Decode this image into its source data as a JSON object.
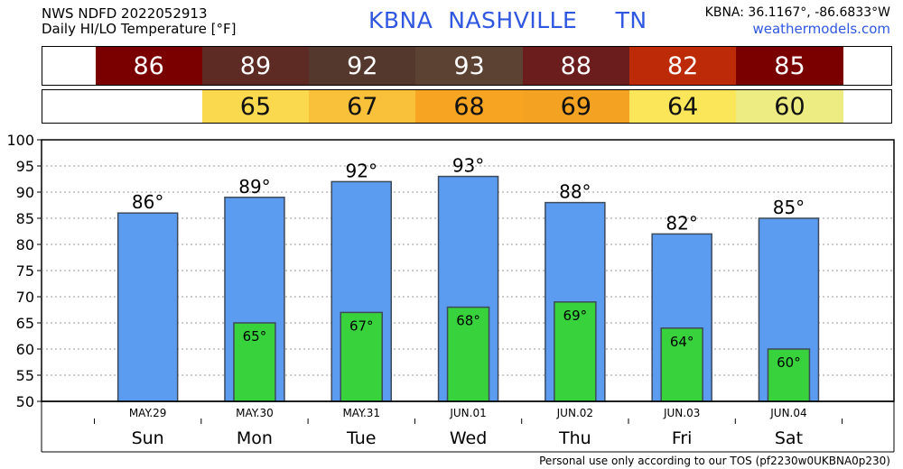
{
  "header": {
    "line1": "NWS NDFD 2022052913",
    "line2": "Daily HI/LO Temperature [°F]",
    "station": "KBNA  NASHVILLE     TN",
    "coords": "KBNA: 36.1167°, -86.6833°W",
    "site": "weathermodels.com"
  },
  "footer": "Personal use only according to our TOS (pf2230w0UKBNA0p230)",
  "strips": {
    "hi": [
      {
        "text": "86",
        "color": "#7a0000"
      },
      {
        "text": "89",
        "color": "#5e2a24"
      },
      {
        "text": "92",
        "color": "#54382e"
      },
      {
        "text": "93",
        "color": "#5c4233"
      },
      {
        "text": "88",
        "color": "#6b1c1c"
      },
      {
        "text": "82",
        "color": "#bd2a08"
      },
      {
        "text": "85",
        "color": "#7a0000"
      }
    ],
    "lo": [
      {
        "text": "",
        "color": "#ffffff"
      },
      {
        "text": "65",
        "color": "#fbd94e"
      },
      {
        "text": "67",
        "color": "#f9c13a"
      },
      {
        "text": "68",
        "color": "#f6a421"
      },
      {
        "text": "69",
        "color": "#f3a221"
      },
      {
        "text": "64",
        "color": "#fbe65a"
      },
      {
        "text": "60",
        "color": "#ecec82"
      }
    ]
  },
  "chart_data": {
    "type": "bar",
    "categories": [
      "Sun",
      "Mon",
      "Tue",
      "Wed",
      "Thu",
      "Fri",
      "Sat"
    ],
    "dates": [
      "MAY.29",
      "MAY.30",
      "MAY.31",
      "JUN.01",
      "JUN.02",
      "JUN.03",
      "JUN.04"
    ],
    "series": [
      {
        "values": [
          86,
          89,
          92,
          93,
          88,
          82,
          85
        ],
        "color": "#5b9cf0",
        "labels": [
          "86°",
          "89°",
          "92°",
          "93°",
          "88°",
          "82°",
          "85°"
        ]
      },
      {
        "values": [
          null,
          65,
          67,
          68,
          69,
          64,
          60
        ],
        "color": "#38d23c",
        "labels": [
          "",
          "65°",
          "67°",
          "68°",
          "69°",
          "64°",
          "60°"
        ]
      }
    ],
    "ylim": [
      50,
      100
    ],
    "yticks": [
      50,
      55,
      60,
      65,
      70,
      75,
      80,
      85,
      90,
      95,
      100
    ],
    "grid": true
  }
}
